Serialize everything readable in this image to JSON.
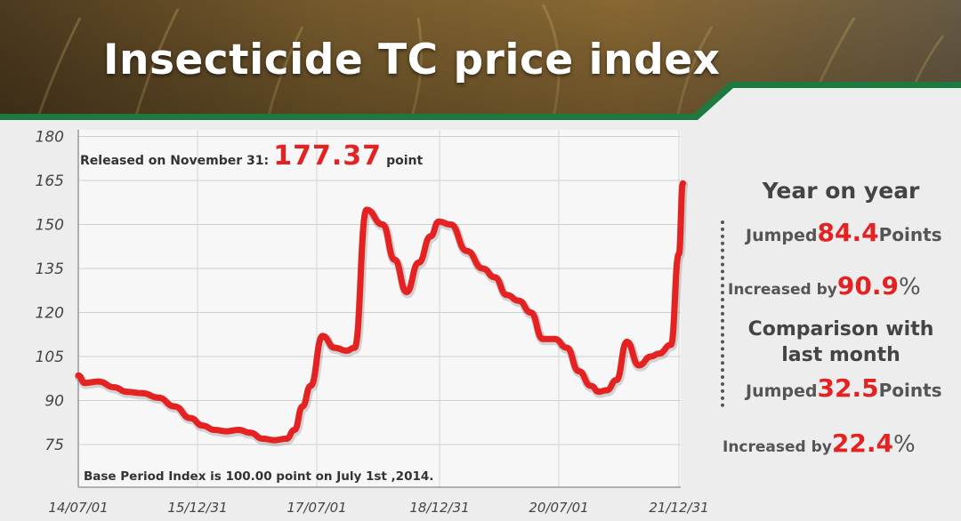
{
  "title": "Insecticide TC price index",
  "released": {
    "label": "Released on November 31:",
    "value": "177.37",
    "unit": "point"
  },
  "base_note": "Base Period Index is 100.00 point on July 1st ,2014.",
  "panel": {
    "yoy_heading": "Year on year",
    "yoy_jumped": {
      "label": "Jumped",
      "value": "84.4",
      "unit": "Points"
    },
    "yoy_increased": {
      "label": "Increased by",
      "value": "90.9",
      "unit": "%"
    },
    "mom_heading_line1": "Comparison with",
    "mom_heading_line2": "last month",
    "mom_jumped": {
      "label": "Jumped",
      "value": "32.5",
      "unit": "Points"
    },
    "mom_increased": {
      "label": "Increased by",
      "value": "22.4",
      "unit": "%"
    }
  },
  "colors": {
    "line": "#e52222",
    "accent_green": "#1c7a3e",
    "highlight_red": "#e52222"
  },
  "chart_data": {
    "type": "line",
    "title": "Insecticide TC price index",
    "xlabel": "",
    "ylabel": "",
    "x_ticks": [
      "14/07/01",
      "15/12/31",
      "17/07/01",
      "18/12/31",
      "20/07/01",
      "21/12/31"
    ],
    "y_ticks": [
      75,
      90,
      105,
      120,
      135,
      150,
      165,
      180
    ],
    "ylim": [
      70,
      180
    ],
    "grid": true,
    "series": [
      {
        "x": [
          2014.5,
          2014.58,
          2014.75,
          2014.95,
          2015.1,
          2015.3,
          2015.5,
          2015.7,
          2015.9,
          2016.05,
          2016.2,
          2016.35,
          2016.5,
          2016.65,
          2016.8,
          2016.95,
          2017.1,
          2017.2,
          2017.3,
          2017.4,
          2017.55,
          2017.7,
          2017.85,
          2017.95,
          2018.1,
          2018.3,
          2018.45,
          2018.6,
          2018.75,
          2018.9,
          2019.0,
          2019.15,
          2019.35,
          2019.55,
          2019.7,
          2019.85,
          2020.0,
          2020.15,
          2020.3,
          2020.45,
          2020.6,
          2020.75,
          2020.9,
          2021.0,
          2021.1,
          2021.22,
          2021.35,
          2021.5,
          2021.65,
          2021.75,
          2021.9,
          2022.0,
          2022.05
        ],
        "values": [
          98.5,
          96.0,
          96.5,
          94.5,
          93.0,
          92.5,
          91.0,
          88.0,
          84.0,
          81.5,
          80.0,
          79.5,
          80.0,
          79.0,
          77.0,
          76.5,
          77.0,
          80.0,
          88.0,
          95.0,
          112.0,
          108.0,
          107.0,
          108.0,
          155.0,
          150.0,
          138.0,
          127.0,
          137.0,
          146.0,
          151.0,
          150.0,
          141.0,
          135.0,
          132.0,
          126.0,
          124.0,
          120.0,
          111.0,
          111.0,
          108.0,
          100.0,
          95.0,
          93.0,
          93.5,
          97.0,
          110.0,
          102.0,
          105.0,
          106.0,
          109.0,
          140.0,
          164.0
        ]
      }
    ]
  }
}
